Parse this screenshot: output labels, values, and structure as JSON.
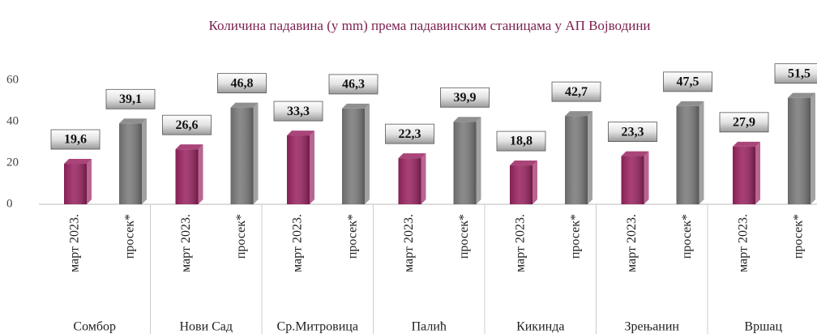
{
  "chart_data": {
    "type": "bar",
    "title": "Количина падавина (у mm) према падавинским станицама у АП Војводини",
    "categories": [
      "Сомбор",
      "Нови Сад",
      "Ср.Митровица",
      "Палић",
      "Кикинда",
      "Зрењанин",
      "Вршац"
    ],
    "series": [
      {
        "name": "март 2023.",
        "color": "#9b2462",
        "values": [
          19.6,
          26.6,
          33.3,
          22.3,
          18.8,
          23.3,
          27.9
        ],
        "value_labels": [
          "19,6",
          "26,6",
          "33,3",
          "22,3",
          "18,8",
          "23,3",
          "27,9"
        ]
      },
      {
        "name": "просек*",
        "color": "#7b7b7b",
        "values": [
          39.1,
          46.8,
          46.3,
          39.9,
          42.7,
          47.5,
          51.5
        ],
        "value_labels": [
          "39,1",
          "46,8",
          "46,3",
          "39,9",
          "42,7",
          "47,5",
          "51,5"
        ]
      }
    ],
    "ylim": [
      0,
      60
    ],
    "yticks": [
      0,
      20,
      40,
      60
    ],
    "grid": false
  }
}
